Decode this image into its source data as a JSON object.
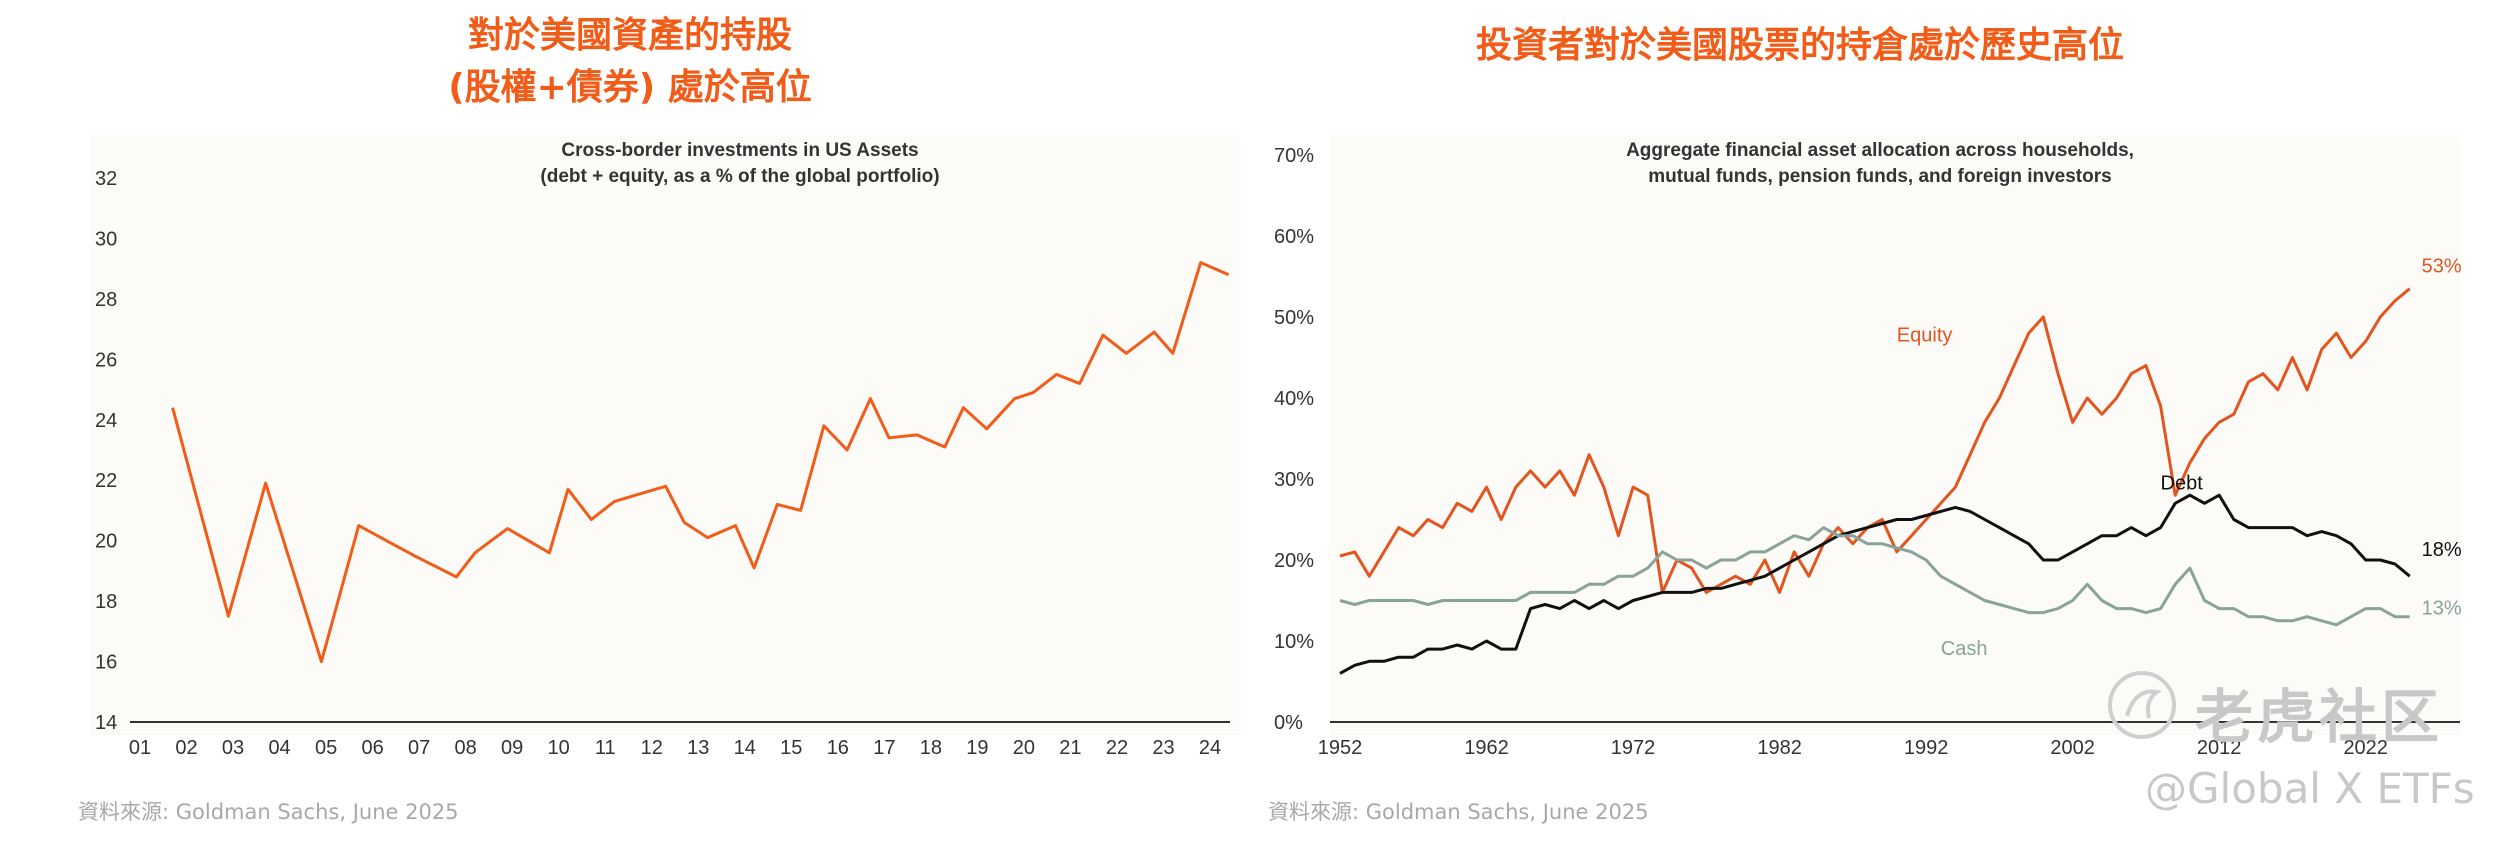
{
  "colors": {
    "accent": "#f25c19",
    "equity": "#e3551e",
    "debt": "#111111",
    "cash": "#87a39a",
    "axis": "#333333"
  },
  "left": {
    "headline_line1": "對於美國資產的持股",
    "headline_line2": "(股權+債券) 處於高位",
    "source": "資料來源: Goldman Sachs, June 2025"
  },
  "right": {
    "headline": "投資者對於美國股票的持倉處於歷史高位",
    "source": "資料來源: Goldman Sachs, June 2025"
  },
  "watermark": {
    "brand": "老虎社区",
    "handle": "@Global X ETFs"
  },
  "chart_data": [
    {
      "type": "line",
      "title": "Cross-border investments in US Assets",
      "subtitle": "(debt + equity, as a % of the global portfolio)",
      "xlabel": "",
      "ylabel": "",
      "ylim": [
        14,
        32
      ],
      "yticks": [
        "14",
        "16",
        "18",
        "20",
        "22",
        "24",
        "26",
        "28",
        "30",
        "32"
      ],
      "categories": [
        "01",
        "02",
        "03",
        "04",
        "05",
        "06",
        "07",
        "08",
        "09",
        "10",
        "11",
        "12",
        "13",
        "14",
        "15",
        "16",
        "17",
        "18",
        "19",
        "20",
        "21",
        "22",
        "23",
        "24"
      ],
      "x": [
        1.7,
        2.9,
        3.7,
        4.9,
        5.7,
        6.9,
        7.8,
        8.2,
        8.9,
        9.8,
        10.2,
        10.7,
        11.2,
        12.3,
        12.7,
        13.2,
        13.8,
        14.2,
        14.7,
        15.2,
        15.7,
        16.2,
        16.7,
        17.1,
        17.7,
        18.3,
        18.7,
        19.2,
        19.8,
        20.2,
        20.7,
        21.2,
        21.7,
        22.2,
        22.8,
        23.2,
        23.8,
        24.4
      ],
      "series": [
        {
          "name": "US assets share",
          "values": [
            24.4,
            17.5,
            21.9,
            16.0,
            20.5,
            19.5,
            18.8,
            19.6,
            20.4,
            19.6,
            21.7,
            20.7,
            21.3,
            21.8,
            20.6,
            20.1,
            20.5,
            19.1,
            21.2,
            21.0,
            23.8,
            23.0,
            24.7,
            23.4,
            23.5,
            23.1,
            24.4,
            23.7,
            24.7,
            24.9,
            25.5,
            25.2,
            26.8,
            26.2,
            26.9,
            26.2,
            29.2,
            28.8
          ]
        }
      ]
    },
    {
      "type": "line",
      "title": "Aggregate financial asset allocation across households,",
      "subtitle": "mutual funds, pension funds, and foreign investors",
      "xlabel": "",
      "ylabel": "",
      "ylim": [
        0,
        70
      ],
      "yticks": [
        "0%",
        "10%",
        "20%",
        "30%",
        "40%",
        "50%",
        "60%",
        "70%"
      ],
      "xticks": [
        "1952",
        "1962",
        "1972",
        "1982",
        "1992",
        "2002",
        "2012",
        "2022"
      ],
      "x": [
        1952,
        1953,
        1954,
        1955,
        1956,
        1957,
        1958,
        1959,
        1960,
        1961,
        1962,
        1963,
        1964,
        1965,
        1966,
        1967,
        1968,
        1969,
        1970,
        1971,
        1972,
        1973,
        1974,
        1975,
        1976,
        1977,
        1978,
        1979,
        1980,
        1981,
        1982,
        1983,
        1984,
        1985,
        1986,
        1987,
        1988,
        1989,
        1990,
        1991,
        1992,
        1993,
        1994,
        1995,
        1996,
        1997,
        1998,
        1999,
        2000,
        2001,
        2002,
        2003,
        2004,
        2005,
        2006,
        2007,
        2008,
        2009,
        2010,
        2011,
        2012,
        2013,
        2014,
        2015,
        2016,
        2017,
        2018,
        2019,
        2020,
        2021,
        2022,
        2023,
        2024,
        2025
      ],
      "series": [
        {
          "name": "Equity",
          "values": [
            20.5,
            21,
            18,
            21,
            24,
            23,
            25,
            24,
            27,
            26,
            29,
            25,
            29,
            31,
            29,
            31,
            28,
            33,
            29,
            23,
            29,
            28,
            16,
            20,
            19,
            16,
            17,
            18,
            17,
            20,
            16,
            21,
            18,
            22,
            24,
            22,
            24,
            25,
            21,
            23,
            25,
            27,
            29,
            33,
            37,
            40,
            44,
            48,
            50,
            43,
            37,
            40,
            38,
            40,
            43,
            44,
            39,
            28,
            32,
            35,
            37,
            38,
            42,
            43,
            41,
            45,
            41,
            46,
            48,
            45,
            47,
            50,
            52,
            53.5
          ],
          "end_label": "53%"
        },
        {
          "name": "Debt",
          "values": [
            6,
            7,
            7.5,
            7.5,
            8,
            8,
            9,
            9,
            9.5,
            9,
            10,
            9,
            9,
            14,
            14.5,
            14,
            15,
            14,
            15,
            14,
            15,
            15.5,
            16,
            16,
            16,
            16.5,
            16.5,
            17,
            17.5,
            18,
            19,
            20,
            21,
            22,
            23,
            23.5,
            24,
            24.5,
            25,
            25,
            25.5,
            26,
            26.5,
            26,
            25,
            24,
            23,
            22,
            20,
            20,
            21,
            22,
            23,
            23,
            24,
            23,
            24,
            27,
            28,
            27,
            28,
            25,
            24,
            24,
            24,
            24,
            23,
            23.5,
            23,
            22,
            20,
            20,
            19.5,
            18
          ],
          "end_label": "18%"
        },
        {
          "name": "Cash",
          "values": [
            15,
            14.5,
            15,
            15,
            15,
            15,
            14.5,
            15,
            15,
            15,
            15,
            15,
            15,
            16,
            16,
            16,
            16,
            17,
            17,
            18,
            18,
            19,
            21,
            20,
            20,
            19,
            20,
            20,
            21,
            21,
            22,
            23,
            22.5,
            24,
            23,
            23,
            22,
            22,
            21.5,
            21,
            20,
            18,
            17,
            16,
            15,
            14.5,
            14,
            13.5,
            13.5,
            14,
            15,
            17,
            15,
            14,
            14,
            13.5,
            14,
            17,
            19,
            15,
            14,
            14,
            13,
            13,
            12.5,
            12.5,
            13,
            12.5,
            12,
            13,
            14,
            14,
            13,
            13
          ],
          "end_label": "13%"
        }
      ]
    }
  ]
}
